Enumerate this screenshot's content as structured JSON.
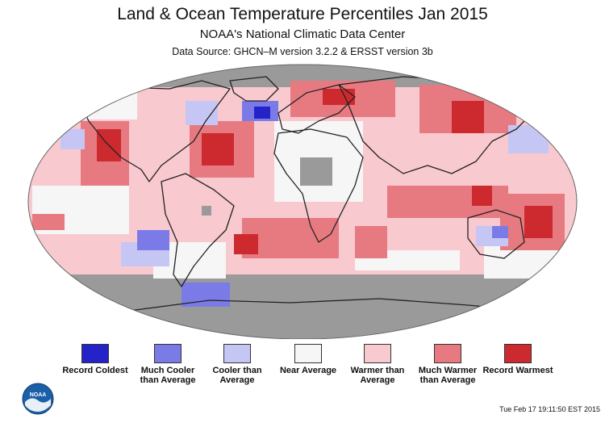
{
  "header": {
    "title": "Land & Ocean Temperature Percentiles Jan 2015",
    "subtitle": "NOAA's National Climatic Data Center",
    "source": "Data Source: GHCN–M version 3.2.2 & ERSST version 3b"
  },
  "legend": {
    "items": [
      {
        "label": "Record Coldest",
        "color": "#2323c8"
      },
      {
        "label": "Much Cooler than Average",
        "color": "#7b7be8"
      },
      {
        "label": "Cooler than Average",
        "color": "#c6c6f5"
      },
      {
        "label": "Near Average",
        "color": "#f6f6f6"
      },
      {
        "label": "Warmer than Average",
        "color": "#f8c9cf"
      },
      {
        "label": "Much Warmer than Average",
        "color": "#e77a80"
      },
      {
        "label": "Record Warmest",
        "color": "#cc2a2e"
      }
    ]
  },
  "colors": {
    "no_data": "#9a9a9a",
    "land_outline": "#222222"
  },
  "logo": {
    "text": "NOAA",
    "icon": "noaa-logo-icon"
  },
  "footer": {
    "timestamp": "Tue Feb 17 19:11:50 EST 2015"
  }
}
